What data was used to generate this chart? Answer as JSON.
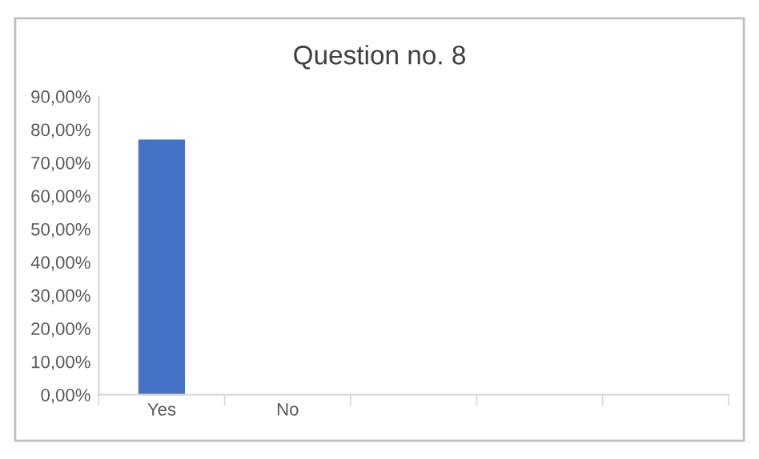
{
  "chart_data": {
    "type": "bar",
    "title": "Question no. 8",
    "categories": [
      "Yes",
      "No",
      null,
      null,
      null
    ],
    "values": [
      77,
      null,
      null,
      null,
      null
    ],
    "color": "#4472c4",
    "ylim": [
      0,
      90
    ],
    "yticks": [
      {
        "value": 0,
        "label": "0,00%"
      },
      {
        "value": 10,
        "label": "10,00%"
      },
      {
        "value": 20,
        "label": "20,00%"
      },
      {
        "value": 30,
        "label": "30,00%"
      },
      {
        "value": 40,
        "label": "40,00%"
      },
      {
        "value": 50,
        "label": "50,00%"
      },
      {
        "value": 60,
        "label": "60,00%"
      },
      {
        "value": 70,
        "label": "70,00%"
      },
      {
        "value": 80,
        "label": "80,00%"
      },
      {
        "value": 90,
        "label": "90,00%"
      }
    ],
    "grid": false
  }
}
